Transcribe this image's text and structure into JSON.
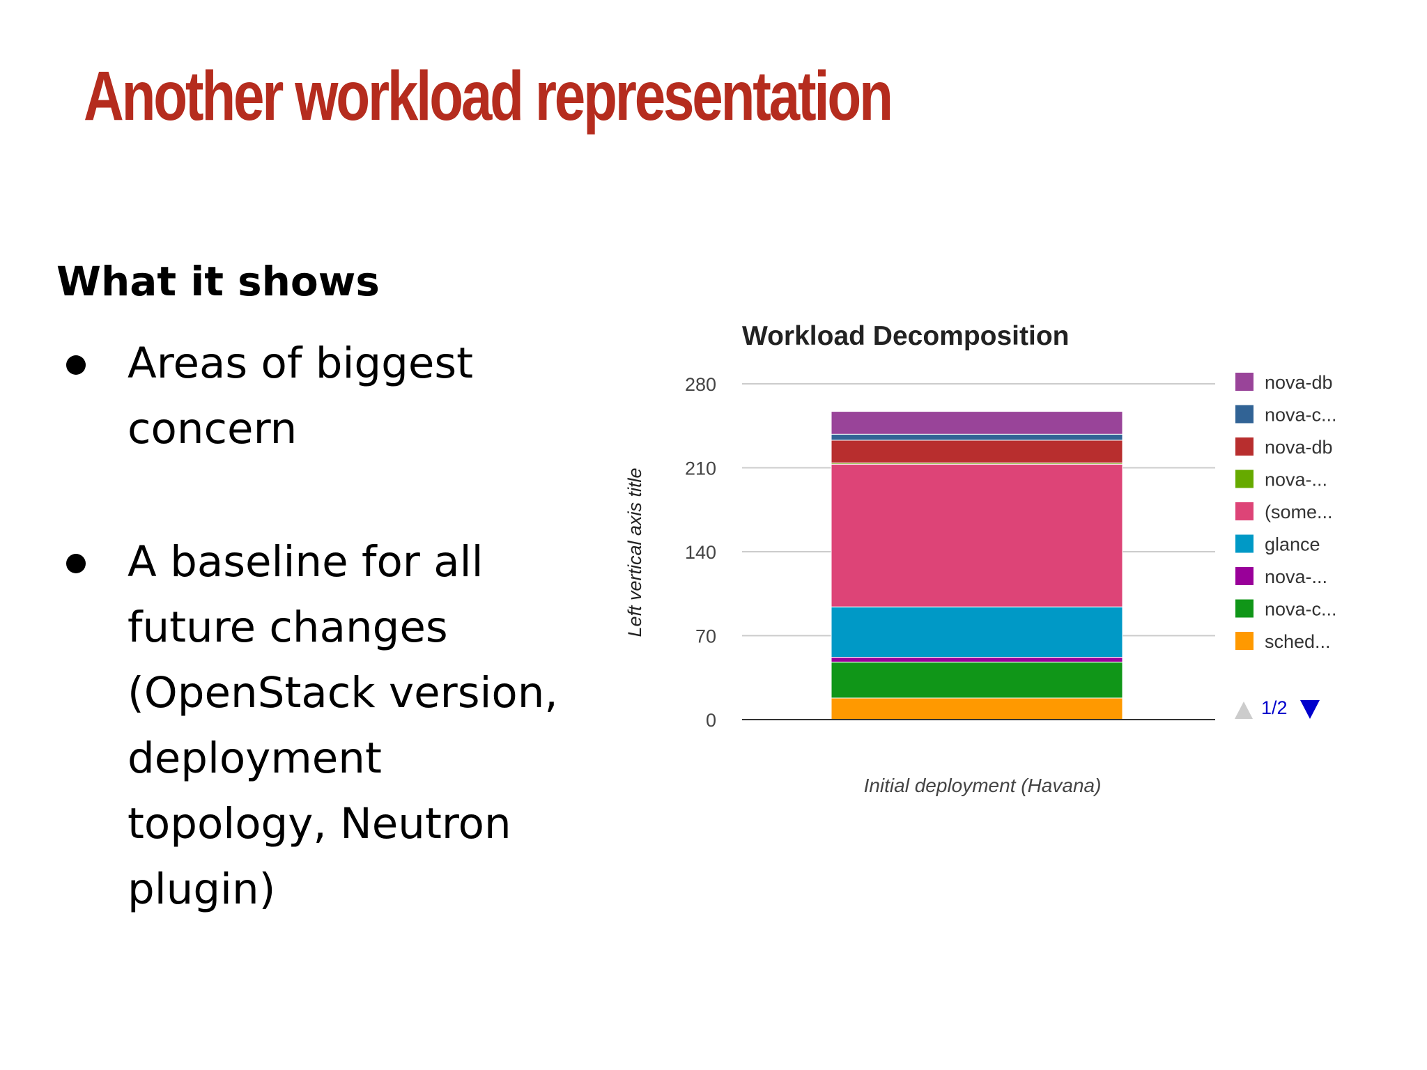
{
  "slide": {
    "title": "Another workload representation",
    "section_heading": "What it shows",
    "bullets": [
      "Areas of biggest\nconcern",
      "A baseline for all\nfuture changes\n(OpenStack version,\ndeployment\ntopology, Neutron\nplugin)"
    ]
  },
  "chart_data": {
    "type": "bar",
    "stacked": true,
    "title": "Workload Decomposition",
    "ylabel": "Left vertical axis title",
    "xlabel": "",
    "categories": [
      "Initial deployment (Havana)"
    ],
    "ylim": [
      0,
      280
    ],
    "yticks": [
      0,
      70,
      140,
      210,
      280
    ],
    "grid": true,
    "legend_position": "right",
    "legend_page": "1/2",
    "series": [
      {
        "name": "sched...",
        "color": "#ff9900",
        "values": [
          18
        ]
      },
      {
        "name": "nova-c...",
        "color": "#109618",
        "values": [
          30
        ]
      },
      {
        "name": "nova-...",
        "color": "#990099",
        "values": [
          4
        ]
      },
      {
        "name": "glance",
        "color": "#0099c6",
        "values": [
          42
        ]
      },
      {
        "name": "(some...",
        "color": "#dd4477",
        "values": [
          119
        ]
      },
      {
        "name": "nova-...",
        "color": "#66aa00",
        "values": [
          1
        ]
      },
      {
        "name": "nova-db",
        "color": "#b82e2e",
        "values": [
          19
        ]
      },
      {
        "name": "nova-c...",
        "color": "#316395",
        "values": [
          5
        ]
      },
      {
        "name": "nova-db",
        "color": "#994499",
        "values": [
          19
        ]
      }
    ],
    "legend": [
      {
        "label": "nova-db",
        "color": "#994499"
      },
      {
        "label": "nova-c...",
        "color": "#316395"
      },
      {
        "label": "nova-db",
        "color": "#b82e2e"
      },
      {
        "label": "nova-...",
        "color": "#66aa00"
      },
      {
        "label": "(some...",
        "color": "#dd4477"
      },
      {
        "label": "glance",
        "color": "#0099c6"
      },
      {
        "label": "nova-...",
        "color": "#990099"
      },
      {
        "label": "nova-c...",
        "color": "#109618"
      },
      {
        "label": "sched...",
        "color": "#ff9900"
      }
    ]
  }
}
